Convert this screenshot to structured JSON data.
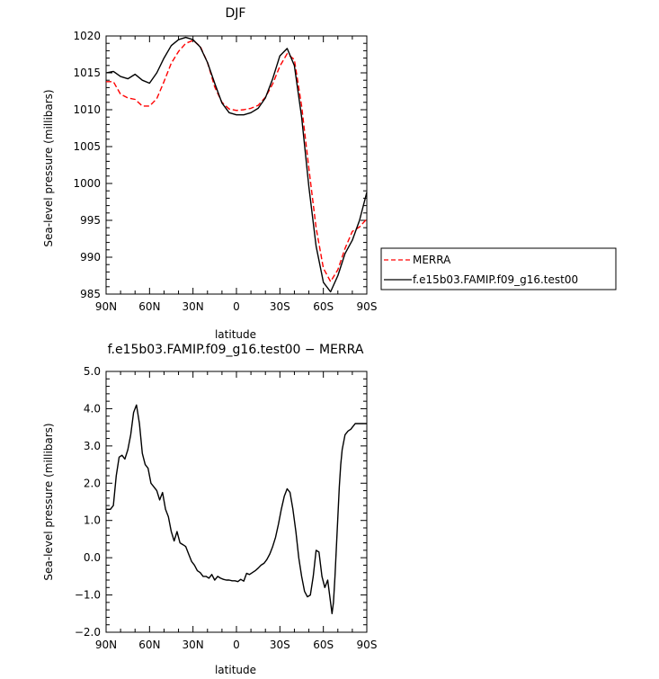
{
  "chart_data": [
    {
      "type": "line",
      "title": "DJF",
      "xlabel": "latitude",
      "ylabel": "Sea-level pressure (millibars)",
      "xlim": [
        90,
        -90
      ],
      "ylim": [
        985,
        1020
      ],
      "xticks": [
        90,
        60,
        30,
        0,
        -30,
        -60,
        -90
      ],
      "xtick_labels": [
        "90N",
        "60N",
        "30N",
        "0",
        "30S",
        "60S",
        "90S"
      ],
      "yticks": [
        985,
        990,
        995,
        1000,
        1005,
        1010,
        1015,
        1020
      ],
      "ytick_labels": [
        "985",
        "990",
        "995",
        "1000",
        "1005",
        "1010",
        "1015",
        "1020"
      ],
      "grid": false,
      "legend_position": "right, outside plot",
      "series": [
        {
          "name": "MERRA",
          "color": "#ff0000",
          "style": "dashed",
          "x": [
            90,
            85,
            80,
            75,
            70,
            65,
            60,
            55,
            50,
            45,
            40,
            35,
            30,
            25,
            20,
            15,
            10,
            5,
            0,
            -5,
            -10,
            -15,
            -20,
            -25,
            -30,
            -35,
            -40,
            -45,
            -50,
            -55,
            -60,
            -65,
            -70,
            -75,
            -80,
            -85,
            -90
          ],
          "y": [
            1013.8,
            1013.8,
            1012.1,
            1011.6,
            1011.4,
            1010.5,
            1010.5,
            1011.5,
            1013.8,
            1016.3,
            1017.9,
            1019.0,
            1019.4,
            1018.6,
            1016.4,
            1013.1,
            1011.0,
            1010.1,
            1009.9,
            1010.0,
            1010.2,
            1010.6,
            1011.7,
            1013.5,
            1015.9,
            1017.6,
            1016.8,
            1010.5,
            1002.0,
            994.0,
            988.5,
            986.7,
            988.3,
            991.2,
            993.5,
            994.1,
            995.2
          ]
        },
        {
          "name": "f.e15b03.FAMIP.f09_g16.test00",
          "color": "#000000",
          "style": "solid",
          "x": [
            90,
            85,
            80,
            75,
            70,
            65,
            60,
            55,
            50,
            45,
            40,
            35,
            30,
            25,
            20,
            15,
            10,
            5,
            0,
            -5,
            -10,
            -15,
            -20,
            -25,
            -30,
            -35,
            -40,
            -45,
            -50,
            -55,
            -60,
            -65,
            -70,
            -75,
            -80,
            -85,
            -90
          ],
          "y": [
            1015.0,
            1015.2,
            1014.5,
            1014.2,
            1014.8,
            1014.0,
            1013.6,
            1015.0,
            1017.0,
            1018.7,
            1019.5,
            1019.8,
            1019.5,
            1018.5,
            1016.4,
            1013.6,
            1010.9,
            1009.6,
            1009.3,
            1009.3,
            1009.6,
            1010.2,
            1011.6,
            1014.2,
            1017.3,
            1018.3,
            1016.0,
            1009.0,
            999.5,
            991.5,
            986.6,
            985.3,
            987.5,
            990.5,
            992.3,
            995.0,
            998.8
          ]
        }
      ]
    },
    {
      "type": "line",
      "title": "f.e15b03.FAMIP.f09_g16.test00 − MERRA",
      "xlabel": "latitude",
      "ylabel": "Sea-level pressure (millibars)",
      "xlim": [
        90,
        -90
      ],
      "ylim": [
        -2.0,
        5.0
      ],
      "xticks": [
        90,
        60,
        30,
        0,
        -30,
        -60,
        -90
      ],
      "xtick_labels": [
        "90N",
        "60N",
        "30N",
        "0",
        "30S",
        "60S",
        "90S"
      ],
      "yticks": [
        -2,
        -1,
        0,
        1,
        2,
        3,
        4,
        5
      ],
      "ytick_labels": [
        "−2.0",
        "−1.0",
        "0.0",
        "1.0",
        "2.0",
        "3.0",
        "4.0",
        "5.0"
      ],
      "grid": false,
      "series": [
        {
          "color": "#000000",
          "style": "solid",
          "x": [
            90,
            87,
            85,
            83,
            81,
            79,
            77,
            75,
            73,
            71,
            69,
            67,
            65,
            63,
            61,
            59,
            57,
            55,
            53,
            51,
            49,
            47,
            45,
            43,
            41,
            39,
            37,
            35,
            33,
            31,
            29,
            27,
            25,
            23,
            21,
            19,
            17,
            15,
            13,
            11,
            9,
            7,
            5,
            3,
            1,
            -1,
            -3,
            -5,
            -7,
            -9,
            -11,
            -13,
            -15,
            -17,
            -19,
            -21,
            -23,
            -25,
            -27,
            -29,
            -31,
            -33,
            -35,
            -37,
            -39,
            -41,
            -43,
            -45,
            -47,
            -49,
            -51,
            -53,
            -55,
            -57,
            -59,
            -61,
            -63,
            -65,
            -66,
            -67,
            -68,
            -69,
            -70,
            -71,
            -72,
            -73,
            -75,
            -77,
            -79,
            -80,
            -81,
            -82,
            -83,
            -85,
            -87,
            -89,
            -90
          ],
          "y": [
            1.3,
            1.3,
            1.4,
            2.2,
            2.7,
            2.75,
            2.65,
            2.9,
            3.3,
            3.9,
            4.1,
            3.6,
            2.8,
            2.5,
            2.4,
            2.0,
            1.9,
            1.8,
            1.55,
            1.75,
            1.3,
            1.1,
            0.7,
            0.45,
            0.7,
            0.4,
            0.35,
            0.3,
            0.1,
            -0.1,
            -0.2,
            -0.35,
            -0.4,
            -0.5,
            -0.5,
            -0.55,
            -0.45,
            -0.6,
            -0.5,
            -0.55,
            -0.58,
            -0.6,
            -0.6,
            -0.62,
            -0.62,
            -0.64,
            -0.58,
            -0.63,
            -0.42,
            -0.45,
            -0.4,
            -0.35,
            -0.28,
            -0.2,
            -0.15,
            -0.05,
            0.1,
            0.3,
            0.55,
            0.9,
            1.3,
            1.65,
            1.85,
            1.75,
            1.3,
            0.7,
            0.0,
            -0.5,
            -0.9,
            -1.05,
            -1.0,
            -0.5,
            0.2,
            0.15,
            -0.5,
            -0.8,
            -0.6,
            -1.2,
            -1.5,
            -1.2,
            -0.5,
            0.3,
            1.1,
            1.9,
            2.5,
            2.9,
            3.3,
            3.4,
            3.45,
            3.5,
            3.55,
            3.6,
            3.6,
            3.6,
            3.6,
            3.6,
            3.6
          ]
        }
      ]
    }
  ]
}
